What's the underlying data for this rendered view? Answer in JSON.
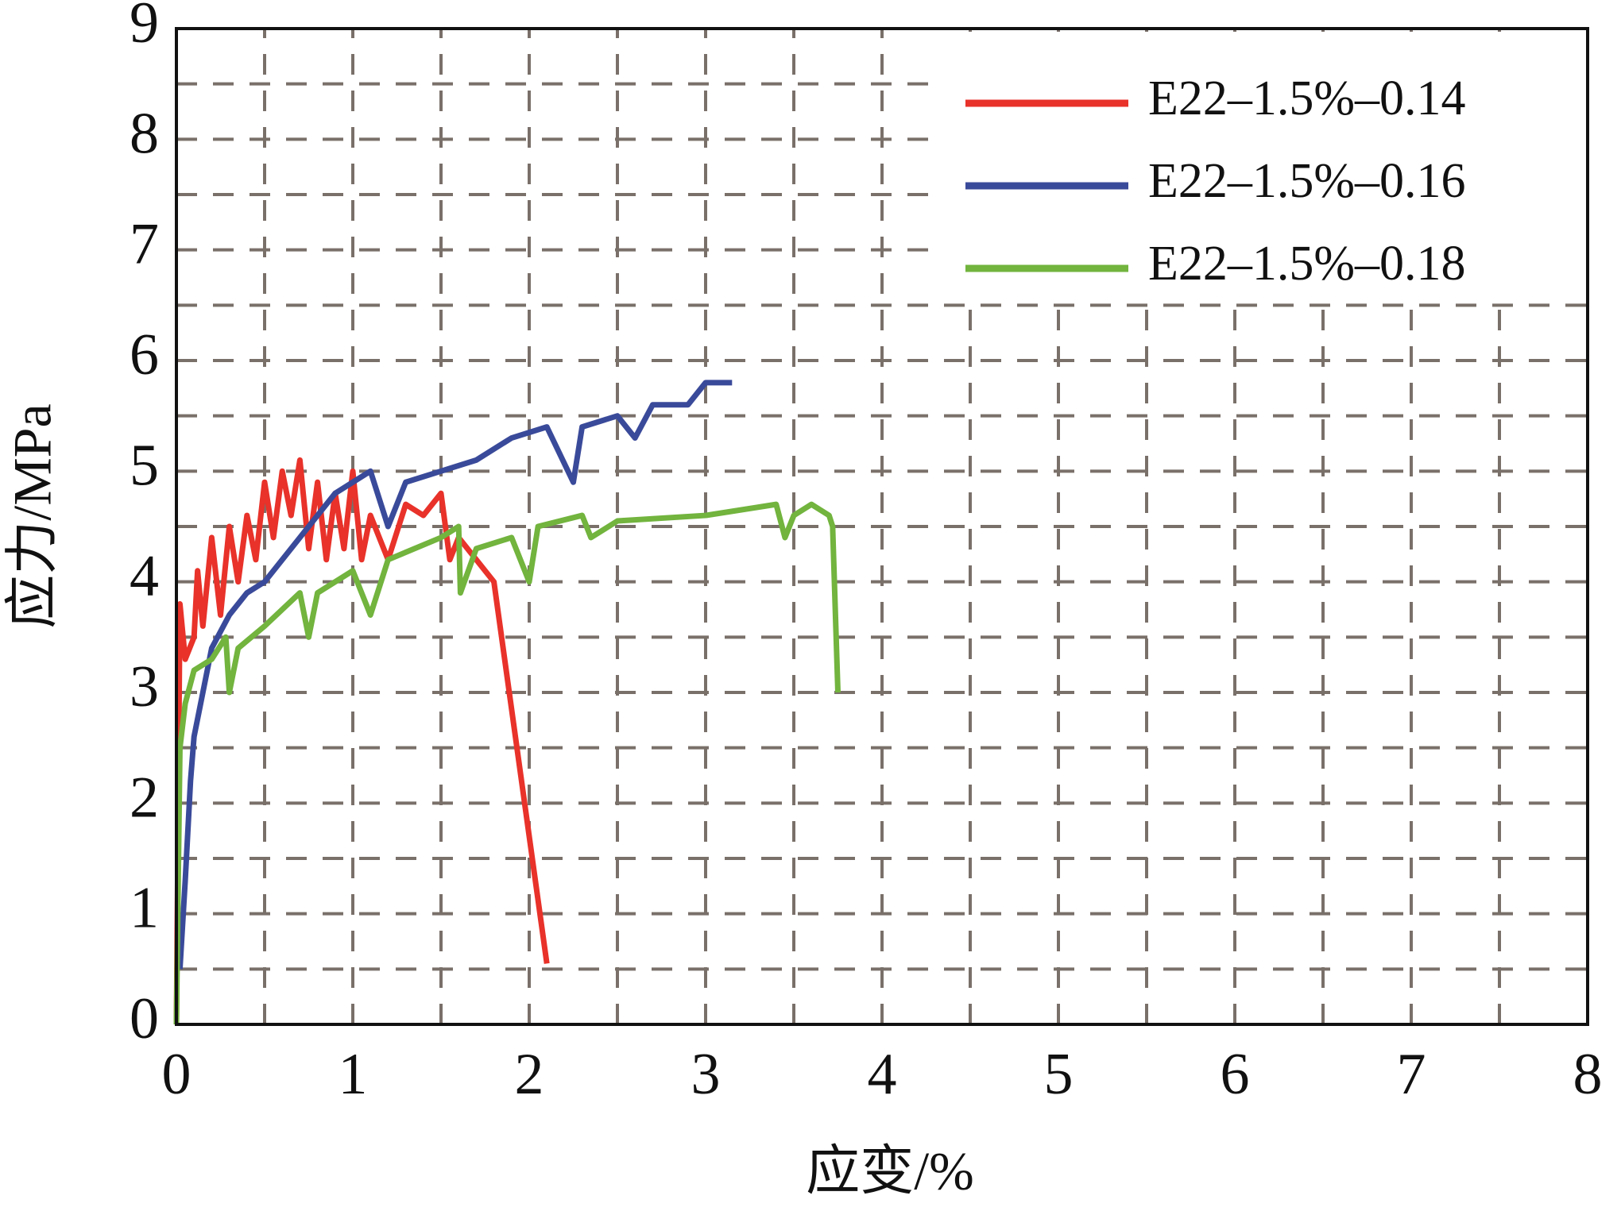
{
  "chart_data": {
    "type": "line",
    "xlabel": "应变/%",
    "ylabel": "应力/MPa",
    "xlim": [
      0,
      8
    ],
    "ylim": [
      0,
      9
    ],
    "xticks": [
      0,
      1,
      2,
      3,
      4,
      5,
      6,
      7,
      8
    ],
    "yticks": [
      0,
      1,
      2,
      3,
      4,
      5,
      6,
      7,
      8,
      9
    ],
    "minor_xticks": [
      0.5,
      1.5,
      2.5,
      3.5,
      4.5,
      5.5,
      6.5,
      7.5
    ],
    "minor_yticks": [
      0.5,
      1.5,
      2.5,
      3.5,
      4.5,
      5.5,
      6.5,
      7.5,
      8.5
    ],
    "grid": true,
    "legend": "upper right",
    "series": [
      {
        "name": "E22–1.5%–0.14",
        "color": "#e8322a",
        "x": [
          0,
          0.02,
          0.05,
          0.1,
          0.12,
          0.15,
          0.2,
          0.25,
          0.3,
          0.35,
          0.4,
          0.45,
          0.5,
          0.55,
          0.6,
          0.65,
          0.7,
          0.75,
          0.8,
          0.85,
          0.9,
          0.95,
          1.0,
          1.05,
          1.1,
          1.2,
          1.3,
          1.4,
          1.5,
          1.55,
          1.6,
          1.7,
          1.8,
          2.1
        ],
        "values": [
          0,
          3.8,
          3.3,
          3.5,
          4.1,
          3.6,
          4.4,
          3.7,
          4.5,
          4.0,
          4.6,
          4.2,
          4.9,
          4.4,
          5.0,
          4.6,
          5.1,
          4.3,
          4.9,
          4.2,
          4.8,
          4.3,
          5.0,
          4.2,
          4.6,
          4.2,
          4.7,
          4.6,
          4.8,
          4.2,
          4.4,
          4.2,
          4.0,
          0.55
        ]
      },
      {
        "name": "E22–1.5%–0.16",
        "color": "#3a4a9a",
        "x": [
          0.02,
          0.05,
          0.08,
          0.1,
          0.15,
          0.2,
          0.3,
          0.4,
          0.5,
          0.6,
          0.7,
          0.8,
          0.9,
          1.0,
          1.1,
          1.2,
          1.3,
          1.5,
          1.7,
          1.9,
          2.1,
          2.25,
          2.3,
          2.5,
          2.6,
          2.7,
          2.9,
          3.0,
          3.15
        ],
        "values": [
          0.5,
          1.3,
          2.2,
          2.6,
          3.0,
          3.4,
          3.7,
          3.9,
          4.0,
          4.2,
          4.4,
          4.6,
          4.8,
          4.9,
          5.0,
          4.5,
          4.9,
          5.0,
          5.1,
          5.3,
          5.4,
          4.9,
          5.4,
          5.5,
          5.3,
          5.6,
          5.6,
          5.8,
          5.8
        ]
      },
      {
        "name": "E22–1.5%–0.18",
        "color": "#72b43e",
        "x": [
          0,
          0.02,
          0.05,
          0.1,
          0.2,
          0.28,
          0.3,
          0.35,
          0.5,
          0.7,
          0.75,
          0.8,
          1.0,
          1.1,
          1.2,
          1.5,
          1.6,
          1.61,
          1.7,
          1.9,
          2.0,
          2.05,
          2.3,
          2.35,
          2.5,
          3.0,
          3.4,
          3.45,
          3.5,
          3.6,
          3.7,
          3.72,
          3.75
        ],
        "values": [
          0,
          2.5,
          2.9,
          3.2,
          3.3,
          3.5,
          3.0,
          3.4,
          3.6,
          3.9,
          3.5,
          3.9,
          4.1,
          3.7,
          4.2,
          4.4,
          4.5,
          3.9,
          4.3,
          4.4,
          4.0,
          4.5,
          4.6,
          4.4,
          4.55,
          4.6,
          4.7,
          4.4,
          4.6,
          4.7,
          4.6,
          4.5,
          3.0
        ]
      }
    ]
  }
}
